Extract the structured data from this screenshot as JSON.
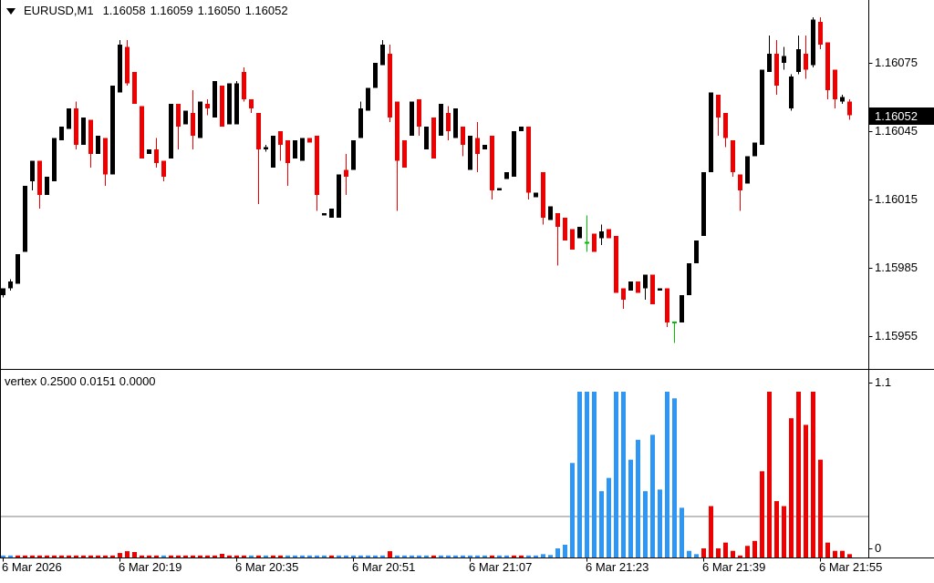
{
  "header": {
    "symbol": "EURUSD,M1",
    "open": "1.16058",
    "high": "1.16059",
    "low": "1.16050",
    "close": "1.16052"
  },
  "price_axis": {
    "ticks": [
      "1.16075",
      "1.16045",
      "1.16015",
      "1.15985",
      "1.15955"
    ],
    "current_price": "1.16052"
  },
  "time_axis": {
    "labels": [
      {
        "bar": 0,
        "text": "6 Mar 2026"
      },
      {
        "bar": 16,
        "text": "6 Mar 20:19"
      },
      {
        "bar": 32,
        "text": "6 Mar 20:35"
      },
      {
        "bar": 48,
        "text": "6 Mar 20:51"
      },
      {
        "bar": 64,
        "text": "6 Mar 21:07"
      },
      {
        "bar": 80,
        "text": "6 Mar 21:23"
      },
      {
        "bar": 96,
        "text": "6 Mar 21:39"
      },
      {
        "bar": 112,
        "text": "6 Mar 21:55"
      }
    ]
  },
  "indicator_pane": {
    "name": "vertex",
    "params": "0.2500 0.0151 0.0000",
    "axis_ticks": [
      "1.1",
      "0"
    ],
    "level_value": 0.25
  },
  "colors": {
    "candle_up": "#000000",
    "candle_down": "#ee0000",
    "candle_doji": "#00c000",
    "hist_blue": "#2f97f3",
    "hist_red": "#ee0000",
    "level_line": "#808080",
    "badge_bg": "#000000",
    "badge_text": "#ffffff",
    "border": "#000000",
    "background": "#ffffff"
  },
  "chart_data": [
    {
      "type": "candlestick",
      "title": "EURUSD,M1 1.16058 1.16059 1.16050 1.16052",
      "x_unit": "1-minute bars, labels every 16 bars",
      "ylim": [
        1.1595,
        1.16096
      ],
      "grid": false,
      "note": "each entry is [open, high, low, close, dir] where dir u=up(black) d=down(red) g=doji(green)",
      "ohlc": [
        [
          1.15973,
          1.15976,
          1.15972,
          1.15976,
          "u"
        ],
        [
          1.15976,
          1.1598,
          1.15975,
          1.15979,
          "u"
        ],
        [
          1.15978,
          1.15991,
          1.15978,
          1.15991,
          "u"
        ],
        [
          1.15992,
          1.16021,
          1.15992,
          1.16021,
          "u"
        ],
        [
          1.16023,
          1.16032,
          1.16019,
          1.16032,
          "u"
        ],
        [
          1.16032,
          1.16032,
          1.16011,
          1.16017,
          "d"
        ],
        [
          1.16017,
          1.16025,
          1.16017,
          1.16025,
          "u"
        ],
        [
          1.16023,
          1.16042,
          1.16023,
          1.16042,
          "u"
        ],
        [
          1.16041,
          1.16047,
          1.16041,
          1.16047,
          "u"
        ],
        [
          1.16046,
          1.16055,
          1.16046,
          1.16055,
          "u"
        ],
        [
          1.16055,
          1.16058,
          1.16037,
          1.16039,
          "d"
        ],
        [
          1.16039,
          1.16051,
          1.16039,
          1.16051,
          "u"
        ],
        [
          1.1605,
          1.1605,
          1.16029,
          1.16035,
          "d"
        ],
        [
          1.16035,
          1.16043,
          1.16035,
          1.16043,
          "u"
        ],
        [
          1.16042,
          1.16042,
          1.16021,
          1.16026,
          "d"
        ],
        [
          1.16026,
          1.16065,
          1.16026,
          1.16065,
          "u"
        ],
        [
          1.16062,
          1.16085,
          1.16062,
          1.16083,
          "u"
        ],
        [
          1.16082,
          1.16085,
          1.16065,
          1.16066,
          "d"
        ],
        [
          1.16071,
          1.16071,
          1.16057,
          1.16057,
          "d"
        ],
        [
          1.16056,
          1.16056,
          1.16033,
          1.16033,
          "d"
        ],
        [
          1.16035,
          1.16037,
          1.16035,
          1.16037,
          "u"
        ],
        [
          1.16037,
          1.16042,
          1.16029,
          1.16031,
          "d"
        ],
        [
          1.16032,
          1.16032,
          1.16023,
          1.16025,
          "d"
        ],
        [
          1.16033,
          1.16057,
          1.16033,
          1.16057,
          "u"
        ],
        [
          1.16057,
          1.16057,
          1.16037,
          1.16047,
          "d"
        ],
        [
          1.16048,
          1.16054,
          1.16048,
          1.16054,
          "u"
        ],
        [
          1.16053,
          1.16063,
          1.16037,
          1.16043,
          "d"
        ],
        [
          1.16042,
          1.16058,
          1.16042,
          1.16058,
          "u"
        ],
        [
          1.16057,
          1.16059,
          1.16052,
          1.16055,
          "d"
        ],
        [
          1.16051,
          1.16067,
          1.16051,
          1.16067,
          "u"
        ],
        [
          1.16065,
          1.16065,
          1.16047,
          1.16047,
          "d"
        ],
        [
          1.16048,
          1.16066,
          1.16048,
          1.16066,
          "u"
        ],
        [
          1.16048,
          1.16067,
          1.16048,
          1.16066,
          "u"
        ],
        [
          1.16071,
          1.16073,
          1.16058,
          1.16059,
          "d"
        ],
        [
          1.16059,
          1.16059,
          1.16053,
          1.16055,
          "d"
        ],
        [
          1.16053,
          1.16053,
          1.16013,
          1.16037,
          "d"
        ],
        [
          1.16037,
          1.16039,
          1.16036,
          1.16038,
          "u"
        ],
        [
          1.16029,
          1.16043,
          1.16029,
          1.16043,
          "u"
        ],
        [
          1.16045,
          1.16045,
          1.16032,
          1.16039,
          "d"
        ],
        [
          1.16041,
          1.16041,
          1.16021,
          1.16031,
          "d"
        ],
        [
          1.16033,
          1.16041,
          1.16033,
          1.16041,
          "u"
        ],
        [
          1.16032,
          1.16042,
          1.16032,
          1.16042,
          "u"
        ],
        [
          1.16042,
          1.16042,
          1.1604,
          1.1604,
          "d"
        ],
        [
          1.16043,
          1.16043,
          1.1601,
          1.16017,
          "d"
        ],
        [
          1.16008,
          1.16009,
          1.16008,
          1.16009,
          "u"
        ],
        [
          1.16007,
          1.16011,
          1.16007,
          1.16011,
          "u"
        ],
        [
          1.16007,
          1.16026,
          1.16007,
          1.16026,
          "u"
        ],
        [
          1.16028,
          1.16035,
          1.16017,
          1.16025,
          "d"
        ],
        [
          1.16028,
          1.16041,
          1.16028,
          1.16041,
          "u"
        ],
        [
          1.16042,
          1.16058,
          1.16042,
          1.16055,
          "u"
        ],
        [
          1.16054,
          1.16064,
          1.16054,
          1.16064,
          "u"
        ],
        [
          1.16064,
          1.16075,
          1.16064,
          1.16075,
          "u"
        ],
        [
          1.16074,
          1.16085,
          1.16074,
          1.16083,
          "u"
        ],
        [
          1.16079,
          1.16083,
          1.16049,
          1.16051,
          "d"
        ],
        [
          1.16058,
          1.16058,
          1.1601,
          1.16032,
          "d"
        ],
        [
          1.16041,
          1.16041,
          1.16029,
          1.16029,
          "d"
        ],
        [
          1.16043,
          1.16058,
          1.16043,
          1.16058,
          "u"
        ],
        [
          1.16059,
          1.16059,
          1.16043,
          1.16047,
          "d"
        ],
        [
          1.16037,
          1.16047,
          1.16037,
          1.16047,
          "u"
        ],
        [
          1.16051,
          1.16051,
          1.16033,
          1.16033,
          "d"
        ],
        [
          1.16043,
          1.16057,
          1.16043,
          1.16057,
          "u"
        ],
        [
          1.16053,
          1.16056,
          1.16041,
          1.16045,
          "d"
        ],
        [
          1.16042,
          1.16055,
          1.16042,
          1.16055,
          "u"
        ],
        [
          1.16047,
          1.16047,
          1.16034,
          1.16039,
          "d"
        ],
        [
          1.16028,
          1.16043,
          1.16028,
          1.16043,
          "u"
        ],
        [
          1.16042,
          1.16049,
          1.16027,
          1.16035,
          "d"
        ],
        [
          1.16037,
          1.16039,
          1.16037,
          1.16039,
          "u"
        ],
        [
          1.16043,
          1.16043,
          1.16015,
          1.16019,
          "d"
        ],
        [
          1.16019,
          1.1602,
          1.16019,
          1.1602,
          "u"
        ],
        [
          1.16024,
          1.16027,
          1.16024,
          1.16027,
          "u"
        ],
        [
          1.16025,
          1.16045,
          1.16025,
          1.16045,
          "u"
        ],
        [
          1.16045,
          1.16047,
          1.16045,
          1.16047,
          "u"
        ],
        [
          1.16047,
          1.16047,
          1.16015,
          1.16018,
          "d"
        ],
        [
          1.16016,
          1.16018,
          1.16016,
          1.16018,
          "u"
        ],
        [
          1.16027,
          1.16027,
          1.16004,
          1.16007,
          "d"
        ],
        [
          1.16006,
          1.16012,
          1.16006,
          1.16012,
          "u"
        ],
        [
          1.16009,
          1.16009,
          1.15986,
          1.16003,
          "d"
        ],
        [
          1.16007,
          1.16007,
          1.15997,
          1.15997,
          "d"
        ],
        [
          1.16002,
          1.16002,
          1.15993,
          1.15993,
          "d"
        ],
        [
          1.15998,
          1.16003,
          1.15998,
          1.16003,
          "u"
        ],
        [
          1.15996,
          1.16008,
          1.15992,
          1.15996,
          "g"
        ],
        [
          1.16,
          1.16,
          1.15992,
          1.15992,
          "d"
        ],
        [
          1.15998,
          1.16004,
          1.15995,
          1.16001,
          "u"
        ],
        [
          1.16002,
          1.16002,
          1.15998,
          1.15998,
          "d"
        ],
        [
          1.15999,
          1.15999,
          1.15974,
          1.15974,
          "d"
        ],
        [
          1.15976,
          1.15976,
          1.15967,
          1.15971,
          "d"
        ],
        [
          1.15975,
          1.15979,
          1.15975,
          1.15979,
          "u"
        ],
        [
          1.15979,
          1.15979,
          1.15974,
          1.15974,
          "d"
        ],
        [
          1.15976,
          1.15982,
          1.15971,
          1.15982,
          "u"
        ],
        [
          1.15982,
          1.15982,
          1.15969,
          1.15969,
          "d"
        ],
        [
          1.15975,
          1.15976,
          1.15975,
          1.15976,
          "u"
        ],
        [
          1.15976,
          1.15976,
          1.15959,
          1.15961,
          "d"
        ],
        [
          1.15961,
          1.15961,
          1.15952,
          1.15961,
          "g"
        ],
        [
          1.15961,
          1.15973,
          1.15961,
          1.15973,
          "u"
        ],
        [
          1.15973,
          1.15987,
          1.15973,
          1.15987,
          "u"
        ],
        [
          1.15987,
          1.15997,
          1.15987,
          1.15997,
          "u"
        ],
        [
          1.15999,
          1.16027,
          1.15999,
          1.16027,
          "u"
        ],
        [
          1.16027,
          1.16062,
          1.16027,
          1.16062,
          "u"
        ],
        [
          1.16061,
          1.16061,
          1.16043,
          1.16051,
          "d"
        ],
        [
          1.16053,
          1.16053,
          1.16038,
          1.16042,
          "d"
        ],
        [
          1.16041,
          1.16041,
          1.16025,
          1.16027,
          "d"
        ],
        [
          1.16026,
          1.16026,
          1.1601,
          1.16019,
          "d"
        ],
        [
          1.16022,
          1.16034,
          1.16022,
          1.16034,
          "u"
        ],
        [
          1.16034,
          1.1604,
          1.16034,
          1.1604,
          "u"
        ],
        [
          1.16039,
          1.16072,
          1.16039,
          1.16072,
          "u"
        ],
        [
          1.16071,
          1.16087,
          1.16071,
          1.16079,
          "u"
        ],
        [
          1.16079,
          1.16085,
          1.16061,
          1.16065,
          "d"
        ],
        [
          1.16075,
          1.16082,
          1.16072,
          1.16078,
          "u"
        ],
        [
          1.16055,
          1.1607,
          1.16054,
          1.16069,
          "u"
        ],
        [
          1.16071,
          1.16087,
          1.1607,
          1.16081,
          "u"
        ],
        [
          1.16079,
          1.16087,
          1.16068,
          1.16072,
          "d"
        ],
        [
          1.16074,
          1.16095,
          1.16073,
          1.16094,
          "u"
        ],
        [
          1.16093,
          1.16095,
          1.16081,
          1.16083,
          "d"
        ],
        [
          1.16084,
          1.16084,
          1.16059,
          1.16063,
          "d"
        ],
        [
          1.16072,
          1.16072,
          1.16055,
          1.16059,
          "d"
        ],
        [
          1.16058,
          1.16061,
          1.16057,
          1.1606,
          "u"
        ],
        [
          1.16058,
          1.16059,
          1.1605,
          1.16052,
          "d"
        ]
      ]
    },
    {
      "type": "bar",
      "title": "vertex 0.2500 0.0151 0.0000",
      "ylim": [
        0,
        1.1
      ],
      "level": 0.25,
      "legend_position": "top-left",
      "start_bar": 74,
      "values": [
        0.02,
        0.015,
        0.055,
        0.077,
        0.57,
        1.0,
        1.0,
        1.0,
        0.4,
        0.48,
        1.0,
        1.0,
        0.59,
        0.71,
        0.4,
        0.74,
        0.41,
        1.0,
        0.96,
        0.3,
        0.04,
        0.02,
        0.055,
        0.31,
        0.055,
        0.09,
        0.04,
        0.012,
        0.07,
        0.1,
        0.52,
        1.0,
        0.34,
        0.31,
        0.84,
        1.0,
        0.8,
        1.0,
        0.59,
        0.09,
        0.04,
        0.04,
        0.02
      ],
      "value_colors": "bbbbbbbbbbbbbbbbbbbbbbrrrrrrrrrrrrrrrrrrrrr",
      "baseline": {
        "default_value": 0.012,
        "colors": "bbrrrrrrrrrrrrrrrrrrrrbrrrrrrrrrrrbrbrrbbbbbbrbbbbbbbrbbbbbrbbbbbbbrbbrrbbbbbbbbbbbbbbbbbbbbbbbbrrrrrrrrrrrrrrrrrrrrr",
        "spikes": [
          {
            "bar": 16,
            "value": 0.027
          },
          {
            "bar": 17,
            "value": 0.038
          },
          {
            "bar": 18,
            "value": 0.033
          },
          {
            "bar": 30,
            "value": 0.022
          },
          {
            "bar": 53,
            "value": 0.038
          }
        ]
      }
    }
  ]
}
